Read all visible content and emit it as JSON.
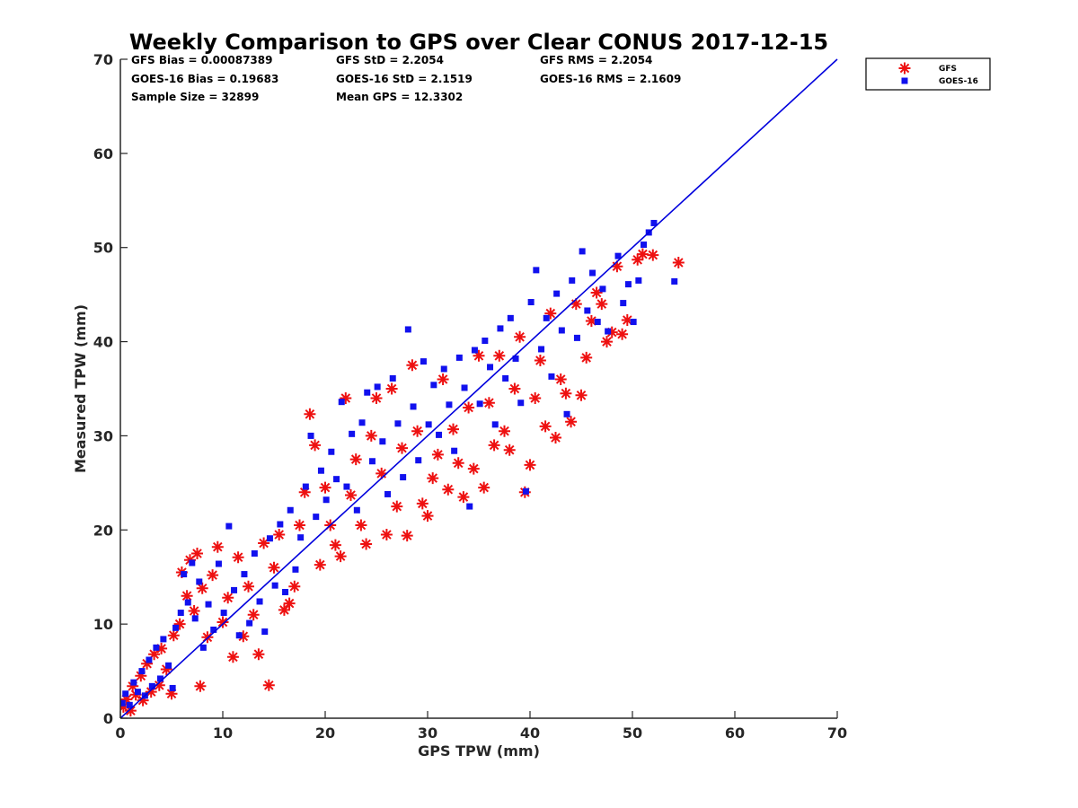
{
  "chart_data": {
    "type": "scatter",
    "title": "Weekly Comparison to GPS over Clear CONUS 2017-12-15",
    "xlabel": "GPS TPW (mm)",
    "ylabel": "Measured TPW (mm)",
    "xlim": [
      0,
      70
    ],
    "ylim": [
      0,
      70
    ],
    "xticks": [
      "0",
      "10",
      "20",
      "30",
      "40",
      "50",
      "60",
      "70"
    ],
    "yticks": [
      "0",
      "10",
      "20",
      "30",
      "40",
      "50",
      "60",
      "70"
    ],
    "grid": false,
    "legend_placement": "outside-top-right",
    "reference_line": {
      "x": [
        0,
        70
      ],
      "y": [
        0,
        70
      ],
      "color": "#0000dd"
    },
    "stats": [
      [
        "GFS Bias = 0.00087389",
        "GFS StD = 2.2054",
        "GFS RMS = 2.2054"
      ],
      [
        "GOES-16 Bias = 0.19683",
        "GOES-16 StD = 2.1519",
        "GOES-16 RMS = 2.1609"
      ],
      [
        "Sample Size = 32899",
        "Mean GPS = 12.3302",
        ""
      ]
    ],
    "series": [
      {
        "name": "GFS",
        "marker": "asterisk",
        "color": "#ee1111",
        "points": [
          [
            0.3,
            1.2
          ],
          [
            0.6,
            2.0
          ],
          [
            1.0,
            0.8
          ],
          [
            1.2,
            3.4
          ],
          [
            1.5,
            2.5
          ],
          [
            2.0,
            4.5
          ],
          [
            2.2,
            1.9
          ],
          [
            2.6,
            5.8
          ],
          [
            3.0,
            2.8
          ],
          [
            3.3,
            6.8
          ],
          [
            3.8,
            3.5
          ],
          [
            4.0,
            7.4
          ],
          [
            4.5,
            5.2
          ],
          [
            5.0,
            2.6
          ],
          [
            5.2,
            8.8
          ],
          [
            5.8,
            10.0
          ],
          [
            6.0,
            15.5
          ],
          [
            6.5,
            13.0
          ],
          [
            6.8,
            16.8
          ],
          [
            7.2,
            11.4
          ],
          [
            7.5,
            17.5
          ],
          [
            7.8,
            3.4
          ],
          [
            8.0,
            13.8
          ],
          [
            8.5,
            8.6
          ],
          [
            9.0,
            15.2
          ],
          [
            9.5,
            18.2
          ],
          [
            10.0,
            10.2
          ],
          [
            10.5,
            12.8
          ],
          [
            11.0,
            6.5
          ],
          [
            11.5,
            17.1
          ],
          [
            12.0,
            8.7
          ],
          [
            12.5,
            14.0
          ],
          [
            13.0,
            11.0
          ],
          [
            13.5,
            6.8
          ],
          [
            14.0,
            18.6
          ],
          [
            14.5,
            3.5
          ],
          [
            15.0,
            16.0
          ],
          [
            15.5,
            19.5
          ],
          [
            16.0,
            11.5
          ],
          [
            16.5,
            12.2
          ],
          [
            17.0,
            14.0
          ],
          [
            17.5,
            20.5
          ],
          [
            18.0,
            24.0
          ],
          [
            18.5,
            32.3
          ],
          [
            19.0,
            29.0
          ],
          [
            19.5,
            16.3
          ],
          [
            20.0,
            24.5
          ],
          [
            20.5,
            20.5
          ],
          [
            21.0,
            18.4
          ],
          [
            21.5,
            17.2
          ],
          [
            22.0,
            34.0
          ],
          [
            22.5,
            23.7
          ],
          [
            23.0,
            27.5
          ],
          [
            23.5,
            20.5
          ],
          [
            24.0,
            18.5
          ],
          [
            24.5,
            30.0
          ],
          [
            25.0,
            34.0
          ],
          [
            25.5,
            26.0
          ],
          [
            26.0,
            19.5
          ],
          [
            26.5,
            35.0
          ],
          [
            27.0,
            22.5
          ],
          [
            27.5,
            28.7
          ],
          [
            28.0,
            19.4
          ],
          [
            28.5,
            37.5
          ],
          [
            29.0,
            30.5
          ],
          [
            29.5,
            22.8
          ],
          [
            30.0,
            21.5
          ],
          [
            30.5,
            25.5
          ],
          [
            31.0,
            28.0
          ],
          [
            31.5,
            36.0
          ],
          [
            32.0,
            24.3
          ],
          [
            32.5,
            30.7
          ],
          [
            33.0,
            27.1
          ],
          [
            33.5,
            23.5
          ],
          [
            34.0,
            33.0
          ],
          [
            34.5,
            26.5
          ],
          [
            35.0,
            38.5
          ],
          [
            35.5,
            24.5
          ],
          [
            36.0,
            33.5
          ],
          [
            36.5,
            29.0
          ],
          [
            37.0,
            38.5
          ],
          [
            37.5,
            30.5
          ],
          [
            38.0,
            28.5
          ],
          [
            38.5,
            35.0
          ],
          [
            39.0,
            40.5
          ],
          [
            39.5,
            24.0
          ],
          [
            40.0,
            26.9
          ],
          [
            40.5,
            34.0
          ],
          [
            41.0,
            38.0
          ],
          [
            41.5,
            31.0
          ],
          [
            42.0,
            43.0
          ],
          [
            42.5,
            29.8
          ],
          [
            43.0,
            36.0
          ],
          [
            43.5,
            34.5
          ],
          [
            44.0,
            31.5
          ],
          [
            44.5,
            44.0
          ],
          [
            45.0,
            34.3
          ],
          [
            45.5,
            38.3
          ],
          [
            46.0,
            42.2
          ],
          [
            46.5,
            45.2
          ],
          [
            47.0,
            44.0
          ],
          [
            47.5,
            40.0
          ],
          [
            48.0,
            41.0
          ],
          [
            48.5,
            48.0
          ],
          [
            49.0,
            40.8
          ],
          [
            49.5,
            42.3
          ],
          [
            50.5,
            48.7
          ],
          [
            51.0,
            49.3
          ],
          [
            52.0,
            49.2
          ],
          [
            54.5,
            48.4
          ]
        ]
      },
      {
        "name": "GOES-16",
        "marker": "square",
        "color": "#1111ee",
        "points": [
          [
            0.2,
            1.6
          ],
          [
            0.5,
            2.6
          ],
          [
            0.9,
            1.4
          ],
          [
            1.3,
            3.8
          ],
          [
            1.7,
            2.8
          ],
          [
            2.1,
            5.0
          ],
          [
            2.4,
            2.4
          ],
          [
            2.8,
            6.2
          ],
          [
            3.1,
            3.4
          ],
          [
            3.5,
            7.5
          ],
          [
            3.9,
            4.2
          ],
          [
            4.2,
            8.4
          ],
          [
            4.7,
            5.6
          ],
          [
            5.1,
            3.2
          ],
          [
            5.4,
            9.6
          ],
          [
            5.9,
            11.2
          ],
          [
            6.2,
            15.3
          ],
          [
            6.6,
            12.3
          ],
          [
            7.0,
            16.5
          ],
          [
            7.3,
            10.6
          ],
          [
            7.7,
            14.5
          ],
          [
            8.1,
            7.5
          ],
          [
            8.6,
            12.1
          ],
          [
            9.1,
            9.4
          ],
          [
            9.6,
            16.4
          ],
          [
            10.1,
            11.2
          ],
          [
            10.6,
            20.4
          ],
          [
            11.1,
            13.6
          ],
          [
            11.6,
            8.8
          ],
          [
            12.1,
            15.3
          ],
          [
            12.6,
            10.1
          ],
          [
            13.1,
            17.5
          ],
          [
            13.6,
            12.4
          ],
          [
            14.1,
            9.2
          ],
          [
            14.6,
            19.1
          ],
          [
            15.1,
            14.1
          ],
          [
            15.6,
            20.6
          ],
          [
            16.1,
            13.4
          ],
          [
            16.6,
            22.1
          ],
          [
            17.1,
            15.8
          ],
          [
            17.6,
            19.2
          ],
          [
            18.1,
            24.6
          ],
          [
            18.6,
            30.0
          ],
          [
            19.1,
            21.4
          ],
          [
            19.6,
            26.3
          ],
          [
            20.1,
            23.2
          ],
          [
            20.6,
            28.3
          ],
          [
            21.1,
            25.4
          ],
          [
            21.6,
            33.6
          ],
          [
            22.1,
            24.6
          ],
          [
            22.6,
            30.2
          ],
          [
            23.1,
            22.1
          ],
          [
            23.6,
            31.4
          ],
          [
            24.1,
            34.6
          ],
          [
            24.6,
            27.3
          ],
          [
            25.1,
            35.2
          ],
          [
            25.6,
            29.4
          ],
          [
            26.1,
            23.8
          ],
          [
            26.6,
            36.1
          ],
          [
            27.1,
            31.3
          ],
          [
            27.6,
            25.6
          ],
          [
            28.1,
            41.3
          ],
          [
            28.6,
            33.1
          ],
          [
            29.1,
            27.4
          ],
          [
            29.6,
            37.9
          ],
          [
            30.1,
            31.2
          ],
          [
            30.6,
            35.4
          ],
          [
            31.1,
            30.1
          ],
          [
            31.6,
            37.1
          ],
          [
            32.1,
            33.3
          ],
          [
            32.6,
            28.4
          ],
          [
            33.1,
            38.3
          ],
          [
            33.6,
            35.1
          ],
          [
            34.1,
            22.5
          ],
          [
            34.6,
            39.1
          ],
          [
            35.1,
            33.4
          ],
          [
            35.6,
            40.1
          ],
          [
            36.1,
            37.3
          ],
          [
            36.6,
            31.2
          ],
          [
            37.1,
            41.4
          ],
          [
            37.6,
            36.1
          ],
          [
            38.1,
            42.5
          ],
          [
            38.6,
            38.2
          ],
          [
            39.1,
            33.5
          ],
          [
            39.6,
            24.1
          ],
          [
            40.1,
            44.2
          ],
          [
            40.6,
            47.6
          ],
          [
            41.1,
            39.2
          ],
          [
            41.6,
            42.5
          ],
          [
            42.1,
            36.3
          ],
          [
            42.6,
            45.1
          ],
          [
            43.1,
            41.2
          ],
          [
            43.6,
            32.3
          ],
          [
            44.1,
            46.5
          ],
          [
            44.6,
            40.4
          ],
          [
            45.1,
            49.6
          ],
          [
            45.6,
            43.3
          ],
          [
            46.1,
            47.3
          ],
          [
            46.6,
            42.1
          ],
          [
            47.1,
            45.6
          ],
          [
            47.6,
            41.1
          ],
          [
            48.6,
            49.1
          ],
          [
            49.1,
            44.1
          ],
          [
            49.6,
            46.1
          ],
          [
            50.1,
            42.1
          ],
          [
            51.1,
            50.3
          ],
          [
            51.6,
            51.6
          ],
          [
            52.1,
            52.6
          ],
          [
            54.1,
            46.4
          ],
          [
            50.6,
            46.5
          ]
        ]
      }
    ]
  }
}
